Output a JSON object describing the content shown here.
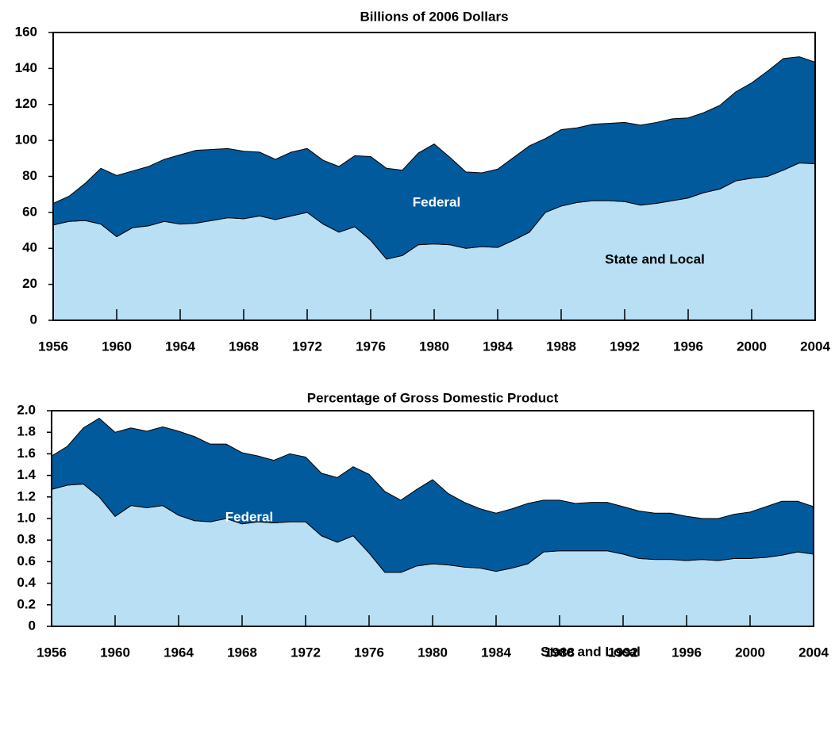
{
  "chart_data": [
    {
      "type": "area",
      "title": "Billions of 2006 Dollars",
      "x": [
        1956,
        1957,
        1958,
        1959,
        1960,
        1961,
        1962,
        1963,
        1964,
        1965,
        1966,
        1967,
        1968,
        1969,
        1970,
        1971,
        1972,
        1973,
        1974,
        1975,
        1976,
        1977,
        1978,
        1979,
        1980,
        1981,
        1982,
        1983,
        1984,
        1985,
        1986,
        1987,
        1988,
        1989,
        1990,
        1991,
        1992,
        1993,
        1994,
        1995,
        1996,
        1997,
        1998,
        1999,
        2000,
        2001,
        2002,
        2003,
        2004
      ],
      "series": [
        {
          "name": "State and Local",
          "color": "#b9dff5",
          "values": [
            53,
            55,
            55.5,
            53.5,
            46.5,
            51.5,
            52.5,
            55,
            53.5,
            54,
            55.5,
            57,
            56.5,
            58,
            56,
            58,
            60,
            53.5,
            49,
            52,
            44.5,
            34,
            36,
            42,
            42.5,
            42,
            40,
            41,
            40.5,
            44.5,
            49,
            60,
            63.5,
            65.5,
            66.5,
            66.5,
            66,
            64,
            65,
            66.5,
            68,
            71,
            73,
            77.5,
            79,
            80,
            83.5,
            87.5,
            87
          ]
        },
        {
          "name": "Federal",
          "color": "#005a9c",
          "values": [
            12,
            14,
            20.5,
            31,
            34,
            31.5,
            33,
            34.5,
            38.5,
            40.5,
            39.5,
            38.5,
            37.5,
            35.5,
            33.5,
            35.5,
            35.5,
            35.5,
            36.5,
            39.5,
            46.5,
            50.5,
            47.5,
            51,
            55.5,
            48.5,
            42.5,
            41,
            43.5,
            46,
            48,
            41,
            42.5,
            41.5,
            42.5,
            43,
            44,
            44.5,
            45,
            45.5,
            44.5,
            44.5,
            46.5,
            49.5,
            53,
            58.5,
            62,
            59,
            56.5
          ]
        }
      ],
      "stacked": true,
      "xlim": [
        1956,
        2004
      ],
      "xticks": [
        1956,
        1960,
        1964,
        1968,
        1972,
        1976,
        1980,
        1984,
        1988,
        1992,
        1996,
        2000,
        2004
      ],
      "ylim": [
        0,
        160
      ],
      "yticks": [
        0,
        20,
        40,
        60,
        80,
        100,
        120,
        140,
        160
      ]
    },
    {
      "type": "area",
      "title": "Percentage of Gross Domestic Product",
      "x": [
        1956,
        1957,
        1958,
        1959,
        1960,
        1961,
        1962,
        1963,
        1964,
        1965,
        1966,
        1967,
        1968,
        1969,
        1970,
        1971,
        1972,
        1973,
        1974,
        1975,
        1976,
        1977,
        1978,
        1979,
        1980,
        1981,
        1982,
        1983,
        1984,
        1985,
        1986,
        1987,
        1988,
        1989,
        1990,
        1991,
        1992,
        1993,
        1994,
        1995,
        1996,
        1997,
        1998,
        1999,
        2000,
        2001,
        2002,
        2003,
        2004
      ],
      "series": [
        {
          "name": "State and Local",
          "color": "#b9dff5",
          "values": [
            1.27,
            1.31,
            1.32,
            1.2,
            1.02,
            1.12,
            1.1,
            1.12,
            1.03,
            0.98,
            0.97,
            1,
            0.95,
            0.97,
            0.96,
            0.97,
            0.97,
            0.84,
            0.78,
            0.84,
            0.68,
            0.5,
            0.5,
            0.56,
            0.58,
            0.57,
            0.55,
            0.54,
            0.51,
            0.54,
            0.58,
            0.69,
            0.7,
            0.7,
            0.7,
            0.7,
            0.67,
            0.63,
            0.62,
            0.62,
            0.61,
            0.62,
            0.61,
            0.63,
            0.63,
            0.64,
            0.66,
            0.69,
            0.67
          ]
        },
        {
          "name": "Federal",
          "color": "#005a9c",
          "values": [
            0.31,
            0.36,
            0.52,
            0.73,
            0.78,
            0.72,
            0.71,
            0.73,
            0.78,
            0.78,
            0.72,
            0.69,
            0.66,
            0.61,
            0.58,
            0.63,
            0.6,
            0.58,
            0.6,
            0.64,
            0.73,
            0.75,
            0.67,
            0.71,
            0.78,
            0.66,
            0.6,
            0.55,
            0.54,
            0.55,
            0.56,
            0.48,
            0.47,
            0.44,
            0.45,
            0.45,
            0.44,
            0.44,
            0.43,
            0.43,
            0.41,
            0.38,
            0.39,
            0.41,
            0.43,
            0.47,
            0.5,
            0.47,
            0.44
          ]
        }
      ],
      "stacked": true,
      "xlim": [
        1956,
        2004
      ],
      "xticks": [
        1956,
        1960,
        1964,
        1968,
        1972,
        1976,
        1980,
        1984,
        1988,
        1992,
        1996,
        2000,
        2004
      ],
      "ylim": [
        0,
        2
      ],
      "yticks": [
        0,
        0.2,
        0.4,
        0.6,
        0.8,
        {
          "value": 1,
          "label": "1.0"
        },
        1.2,
        1.4,
        1.6,
        1.8,
        {
          "value": 2,
          "label": "2.0"
        }
      ]
    }
  ]
}
